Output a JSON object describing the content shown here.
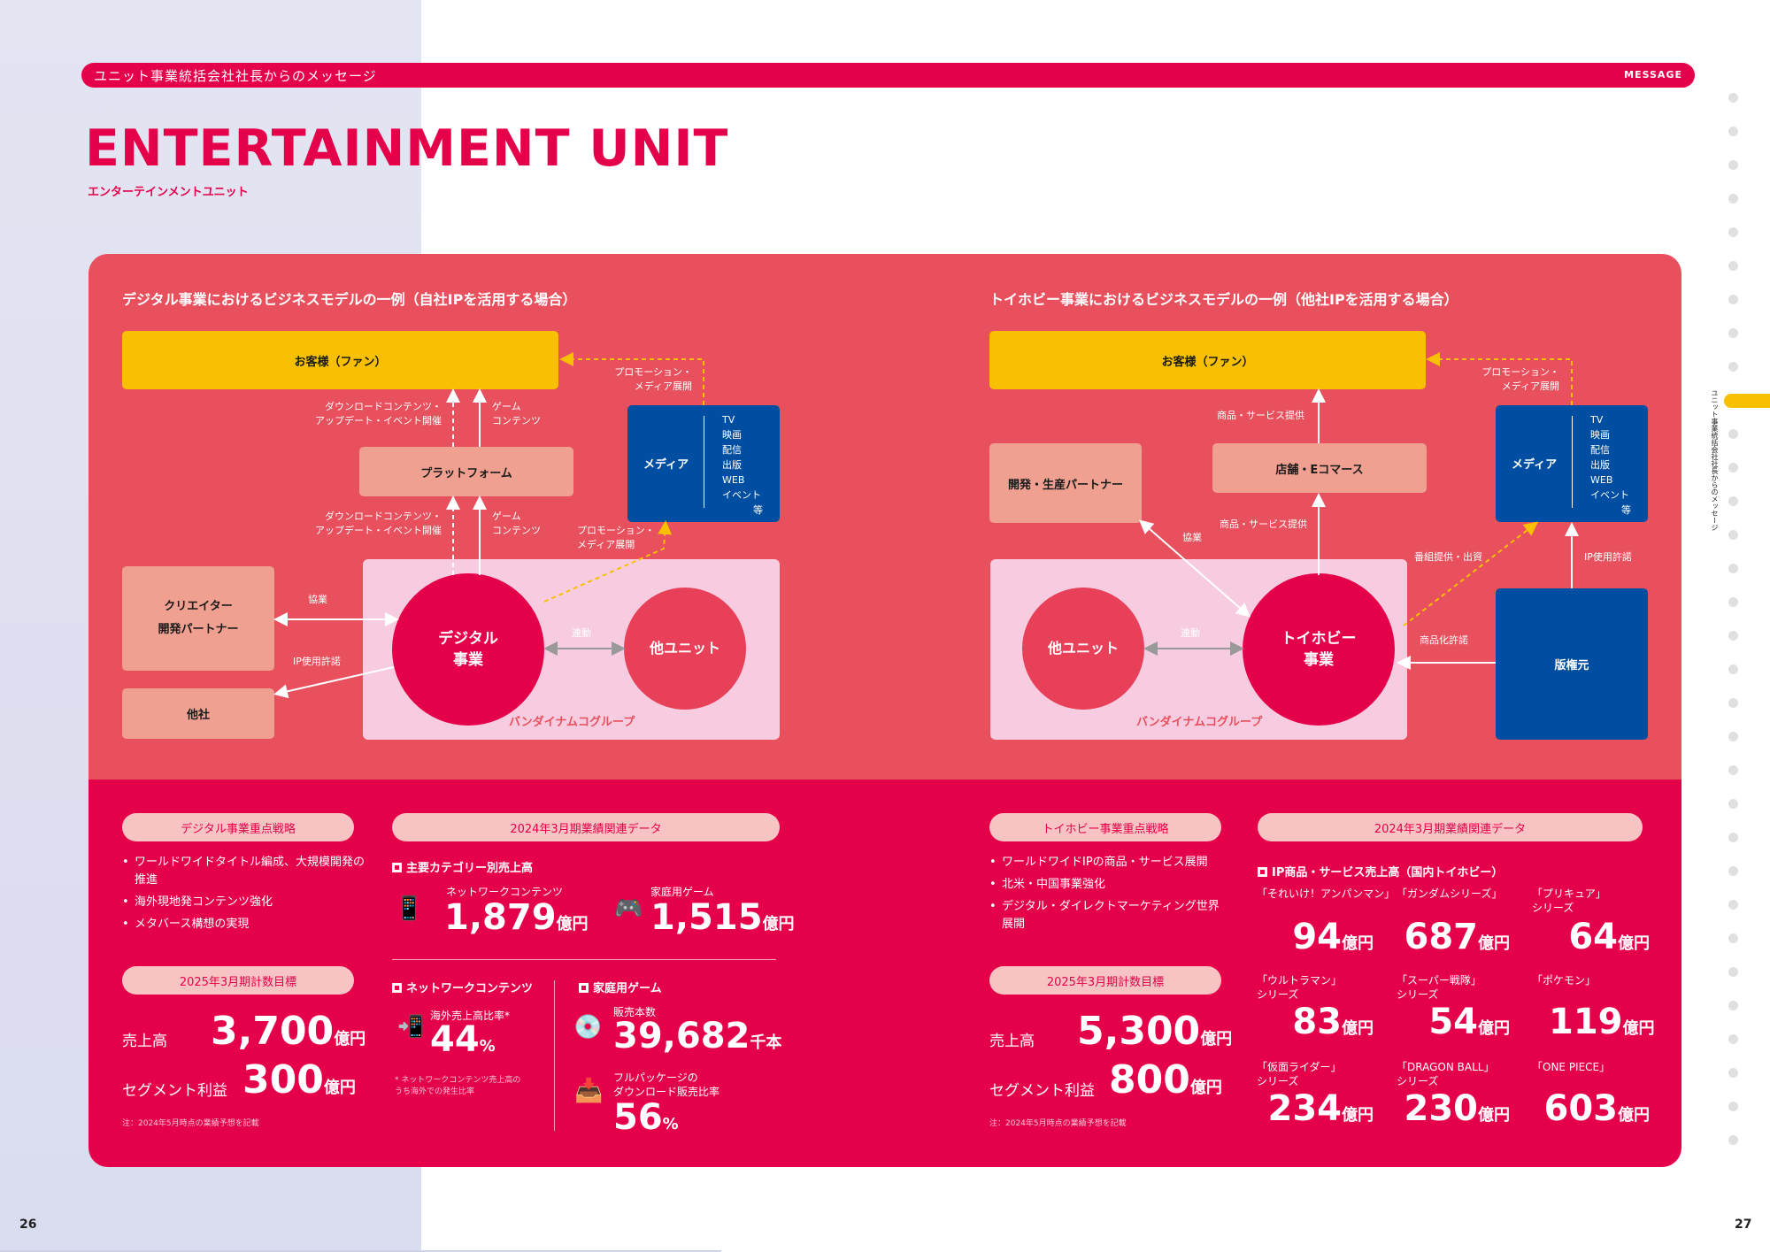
{
  "header": {
    "bar_left": "ユニット事業統括会社社長からのメッセージ",
    "bar_right": "MESSAGE",
    "title": "ENTERTAINMENT UNIT",
    "subtitle": "エンターテインメントユニット"
  },
  "left_diagram": {
    "title": "デジタル事業におけるビジネスモデルの一例（自社IPを活用する場合）",
    "customer": "お客様（ファン）",
    "platform": "プラットフォーム",
    "creator": "クリエイター\n開発パートナー",
    "other_company": "他社",
    "media": "メディア",
    "media_list": [
      "TV",
      "映画",
      "配信",
      "出版",
      "WEB",
      "イベント",
      "等"
    ],
    "digital": "デジタル\n事業",
    "other_unit": "他ユニット",
    "group": "バンダイナムコグループ",
    "lbl_download1": "ダウンロードコンテンツ・\nアップデート・イベント開催",
    "lbl_game1": "ゲーム\nコンテンツ",
    "lbl_download2": "ダウンロードコンテンツ・\nアップデート・イベント開催",
    "lbl_game2": "ゲーム\nコンテンツ",
    "lbl_promo1": "プロモーション・\nメディア展開",
    "lbl_promo2": "プロモーション・\nメディア展開",
    "lbl_kyogyo": "協業",
    "lbl_ip": "IP使用許諾",
    "lbl_rendo": "連動"
  },
  "right_diagram": {
    "title": "トイホビー事業におけるビジネスモデルの一例（他社IPを活用する場合）",
    "customer": "お客様（ファン）",
    "dev_partner": "開発・生産パートナー",
    "store": "店舗・Eコマース",
    "media": "メディア",
    "media_list": [
      "TV",
      "映画",
      "配信",
      "出版",
      "WEB",
      "イベント",
      "等"
    ],
    "other_unit": "他ユニット",
    "toyhobby": "トイホビー\n事業",
    "licensor": "版権元",
    "group": "バンダイナムコグループ",
    "lbl_goods1": "商品・サービス提供",
    "lbl_goods2": "商品・サービス提供",
    "lbl_promo": "プロモーション・\nメディア展開",
    "lbl_kyogyo": "協業",
    "lbl_rendo": "連動",
    "lbl_bangumi": "番組提供・出資",
    "lbl_ip_license": "IP使用許諾",
    "lbl_shohinka": "商品化許諾"
  },
  "digital_strategy": {
    "pill": "デジタル事業重点戦略",
    "bullets": [
      "ワールドワイドタイトル編成、大規模開発の\n推進",
      "海外現地発コンテンツ強化",
      "メタバース構想の実現"
    ],
    "target_pill": "2025年3月期計数目標",
    "sales_label": "売上高",
    "sales_value": "3,700",
    "unit": "億円",
    "profit_label": "セグメント利益",
    "profit_value": "300",
    "note": "注：2024年5月時点の業績予想を記載"
  },
  "digital_data": {
    "pill": "2024年3月期業績関連データ",
    "cat_head": "主要カテゴリー別売上高",
    "net_label": "ネットワークコンテンツ",
    "net_value": "1,879",
    "home_label": "家庭用ゲーム",
    "home_value": "1,515",
    "unit": "億円",
    "net_head": "ネットワークコンテンツ",
    "overseas_label": "海外売上高比率*",
    "overseas_value": "44",
    "pct": "%",
    "overseas_note": "* ネットワークコンテンツ売上高の\nうち海外での発生比率",
    "home_head": "家庭用ゲーム",
    "units_label": "販売本数",
    "units_value": "39,682",
    "units_unit": "千本",
    "dl_label": "フルパッケージの\nダウンロード販売比率",
    "dl_value": "56"
  },
  "toy_strategy": {
    "pill": "トイホビー事業重点戦略",
    "bullets": [
      "ワールドワイドIPの商品・サービス展開",
      "北米・中国事業強化",
      "デジタル・ダイレクトマーケティング世界\n展開"
    ],
    "target_pill": "2025年3月期計数目標",
    "sales_label": "売上高",
    "sales_value": "5,300",
    "unit": "億円",
    "profit_label": "セグメント利益",
    "profit_value": "800",
    "note": "注：2024年5月時点の業績予想を記載"
  },
  "toy_data": {
    "pill": "2024年3月期業績関連データ",
    "head": "IP商品・サービス売上高（国内トイホビー）",
    "unit": "億円",
    "items": [
      {
        "name": "「それいけ！アンパンマン」",
        "value": "94"
      },
      {
        "name": "「ガンダムシリーズ」",
        "value": "687"
      },
      {
        "name": "「プリキュア」\nシリーズ",
        "value": "64"
      },
      {
        "name": "「ウルトラマン」\nシリーズ",
        "value": "83"
      },
      {
        "name": "「スーパー戦隊」\nシリーズ",
        "value": "54"
      },
      {
        "name": "「ポケモン」",
        "value": "119"
      },
      {
        "name": "「仮面ライダー」\nシリーズ",
        "value": "234"
      },
      {
        "name": "「DRAGON BALL」\nシリーズ",
        "value": "230"
      },
      {
        "name": "「ONE PIECE」",
        "value": "603"
      }
    ]
  },
  "side": {
    "vertical_text": "ユニット事業統括会社社長からのメッセージ"
  },
  "pages": {
    "left": "26",
    "right": "27"
  },
  "colors": {
    "brand_red": "#e5004a",
    "panel_coral": "#e8505d",
    "yellow": "#f8c000",
    "media_blue": "#004ea2",
    "salmon": "#efa090",
    "group_pink": "#f7cbe0"
  }
}
